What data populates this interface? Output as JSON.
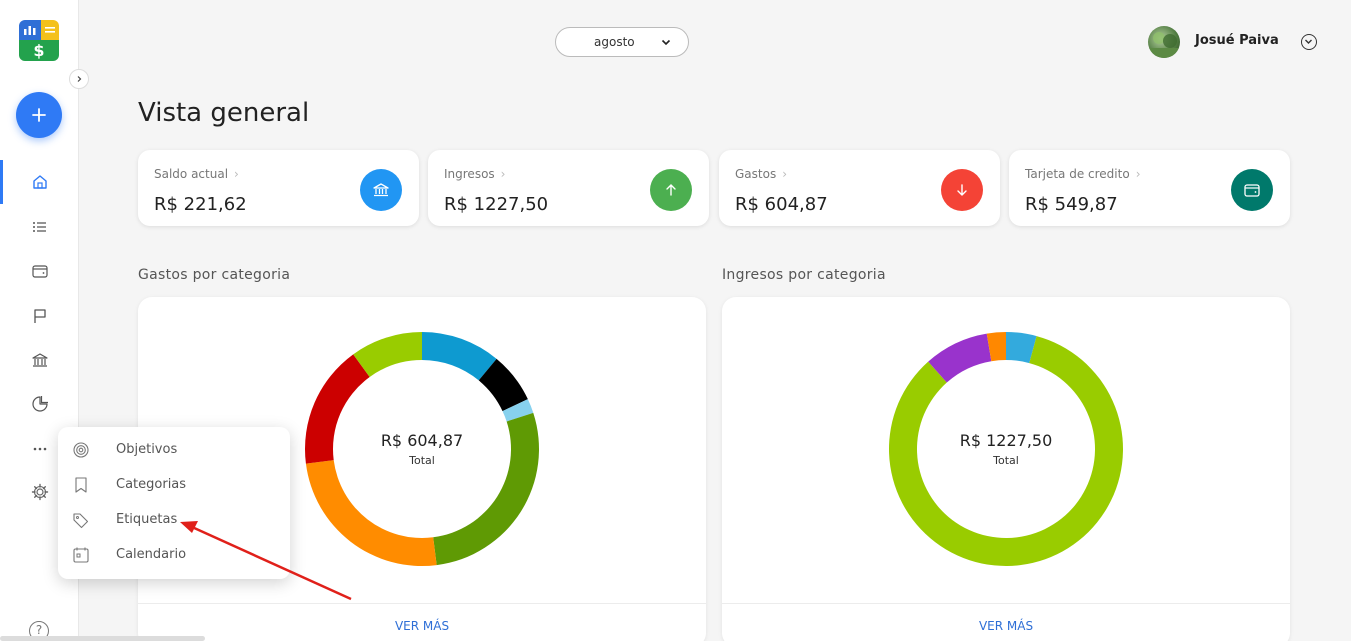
{
  "header": {
    "month": "agosto",
    "user_name": "Josué Paiva"
  },
  "page": {
    "title": "Vista general"
  },
  "cards": [
    {
      "label": "Saldo actual",
      "value": "R$ 221,62",
      "icon": "bank-icon",
      "color": "#2196f3"
    },
    {
      "label": "Ingresos",
      "value": "R$ 1227,50",
      "icon": "arrow-up-icon",
      "color": "#4caf50"
    },
    {
      "label": "Gastos",
      "value": "R$ 604,87",
      "icon": "arrow-down-icon",
      "color": "#f44336"
    },
    {
      "label": "Tarjeta de credito",
      "value": "R$ 549,87",
      "icon": "wallet-icon",
      "color": "#00796b"
    }
  ],
  "menu": {
    "items": [
      {
        "label": "Objetivos",
        "icon": "target-icon"
      },
      {
        "label": "Categorias",
        "icon": "bookmark-icon"
      },
      {
        "label": "Etiquetas",
        "icon": "tag-icon"
      },
      {
        "label": "Calendario",
        "icon": "calendar-icon"
      }
    ]
  },
  "expenses": {
    "title": "Gastos por categoria",
    "total": "R$ 604,87",
    "total_label": "Total",
    "more": "VER MÁS"
  },
  "income": {
    "title": "Ingresos por categoria",
    "total": "R$ 1227,50",
    "total_label": "Total",
    "more": "VER MÁS"
  },
  "chart_data": [
    {
      "type": "pie",
      "title": "Gastos por categoria",
      "slices": [
        {
          "value": 11,
          "color": "#0e9ad0"
        },
        {
          "value": 7,
          "color": "#000000"
        },
        {
          "value": 2,
          "color": "#87d1ee"
        },
        {
          "value": 28,
          "color": "#5f9a04"
        },
        {
          "value": 25,
          "color": "#ff8c00"
        },
        {
          "value": 17,
          "color": "#cc0000"
        },
        {
          "value": 10,
          "color": "#99cc00"
        }
      ]
    },
    {
      "type": "pie",
      "title": "Ingresos por categoria",
      "slices": [
        {
          "value": 4,
          "color": "#33aadd"
        },
        {
          "value": 80,
          "color": "#99cc00"
        },
        {
          "value": 8.5,
          "color": "#9933cc"
        },
        {
          "value": 2.5,
          "color": "#ff8800"
        }
      ]
    }
  ]
}
